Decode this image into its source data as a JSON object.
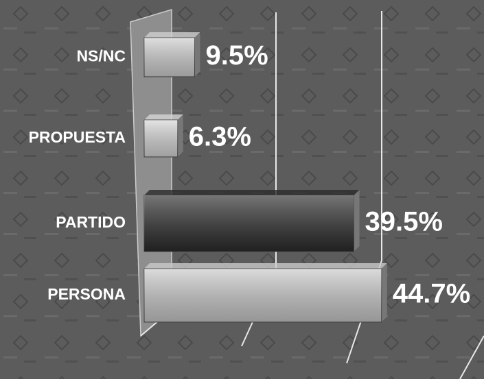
{
  "chart_data": {
    "type": "bar",
    "orientation": "horizontal",
    "categories": [
      "NS/NC",
      "PROPUESTA",
      "PARTIDO",
      "PERSONA"
    ],
    "values": [
      9.5,
      6.3,
      39.5,
      44.7
    ],
    "value_labels": [
      "9.5%",
      "6.3%",
      "39.5%",
      "44.7%"
    ],
    "colors": [
      "#cfcfcf",
      "#d6d6d6",
      "#2c2c2c",
      "#c9c9c9"
    ],
    "xlim": [
      0,
      64
    ]
  }
}
